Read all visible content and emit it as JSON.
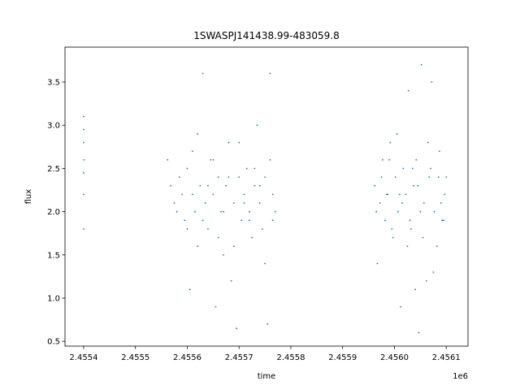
{
  "chart_data": {
    "type": "scatter",
    "title": "1SWASPJ141438.99-483059.8",
    "x_label": "time",
    "y_label": "flux",
    "x_offset_label": "1e6",
    "color": "#1f77b4",
    "xlim": [
      2455364,
      2456142
    ],
    "ylim": [
      0.445,
      3.904
    ],
    "xticks": [
      {
        "value": 2455400,
        "label": "2.4554"
      },
      {
        "value": 2455500,
        "label": "2.4555"
      },
      {
        "value": 2455600,
        "label": "2.4556"
      },
      {
        "value": 2455700,
        "label": "2.4557"
      },
      {
        "value": 2455800,
        "label": "2.4558"
      },
      {
        "value": 2455900,
        "label": "2.4559"
      },
      {
        "value": 2456000,
        "label": "2.4560"
      },
      {
        "value": 2456100,
        "label": "2.4561"
      }
    ],
    "yticks": [
      0.5,
      {
        "value": 1,
        "label": "1.0"
      },
      1.5,
      {
        "value": 2,
        "label": "2.0"
      },
      2.5,
      {
        "value": 3,
        "label": "3.0"
      },
      3.5
    ],
    "x": [
      2455400,
      2455400,
      2455400,
      2455400,
      2455400,
      2455401,
      2455400,
      2455562,
      2455568,
      2455575,
      2455580,
      2455585,
      2455590,
      2455595,
      2455600,
      2455605,
      2455610,
      2455615,
      2455620,
      2455625,
      2455630,
      2455635,
      2455640,
      2455645,
      2455650,
      2455655,
      2455660,
      2455665,
      2455670,
      2455675,
      2455680,
      2455685,
      2455690,
      2455695,
      2455700,
      2455705,
      2455710,
      2455715,
      2455720,
      2455725,
      2455730,
      2455735,
      2455740,
      2455745,
      2455750,
      2455755,
      2455760,
      2455765,
      2455770,
      2455600,
      2455610,
      2455620,
      2455630,
      2455640,
      2455650,
      2455660,
      2455670,
      2455680,
      2455690,
      2455700,
      2455710,
      2455720,
      2455730,
      2455740,
      2455750,
      2455760,
      2455765,
      2455962,
      2455967,
      2455972,
      2455977,
      2455982,
      2455987,
      2455992,
      2455997,
      2456002,
      2456007,
      2456012,
      2456017,
      2456022,
      2456027,
      2456032,
      2456037,
      2456042,
      2456047,
      2456052,
      2456057,
      2456062,
      2456067,
      2456072,
      2456077,
      2456082,
      2456087,
      2456092,
      2456097,
      2456100,
      2455965,
      2455975,
      2455985,
      2455995,
      2456005,
      2456015,
      2456025,
      2456035,
      2456045,
      2456055,
      2456065,
      2456075,
      2456085,
      2456095,
      2455990,
      2456010,
      2456030,
      2456050,
      2456070,
      2456090,
      2456040
    ],
    "y": [
      2.45,
      3.1,
      2.8,
      1.8,
      2.2,
      2.6,
      2.95,
      2.6,
      2.3,
      2.1,
      2.0,
      2.4,
      2.2,
      1.9,
      2.5,
      1.1,
      2.7,
      2.0,
      1.6,
      2.3,
      3.6,
      2.1,
      1.8,
      2.6,
      2.2,
      0.9,
      2.4,
      2.0,
      1.5,
      2.3,
      2.8,
      1.2,
      2.1,
      0.65,
      2.4,
      1.9,
      2.2,
      2.5,
      2.0,
      1.7,
      2.3,
      3.0,
      2.1,
      1.8,
      2.4,
      0.7,
      3.6,
      2.2,
      2.0,
      1.8,
      2.2,
      2.9,
      1.9,
      2.3,
      2.6,
      1.7,
      2.0,
      2.4,
      1.6,
      2.8,
      2.1,
      1.9,
      2.5,
      2.3,
      1.4,
      2.6,
      1.9,
      2.3,
      1.4,
      2.1,
      2.6,
      1.9,
      2.2,
      2.8,
      1.7,
      2.4,
      2.0,
      0.9,
      2.5,
      2.2,
      3.4,
      1.8,
      2.3,
      2.6,
      0.6,
      3.7,
      2.1,
      1.2,
      2.4,
      3.5,
      2.0,
      1.6,
      2.7,
      1.9,
      2.2,
      2.4,
      2.0,
      2.4,
      2.2,
      1.8,
      2.9,
      2.1,
      1.6,
      2.5,
      2.3,
      1.7,
      2.8,
      1.3,
      2.4,
      1.9,
      2.6,
      2.2,
      1.9,
      2.0,
      2.5,
      2.1,
      1.1
    ]
  }
}
